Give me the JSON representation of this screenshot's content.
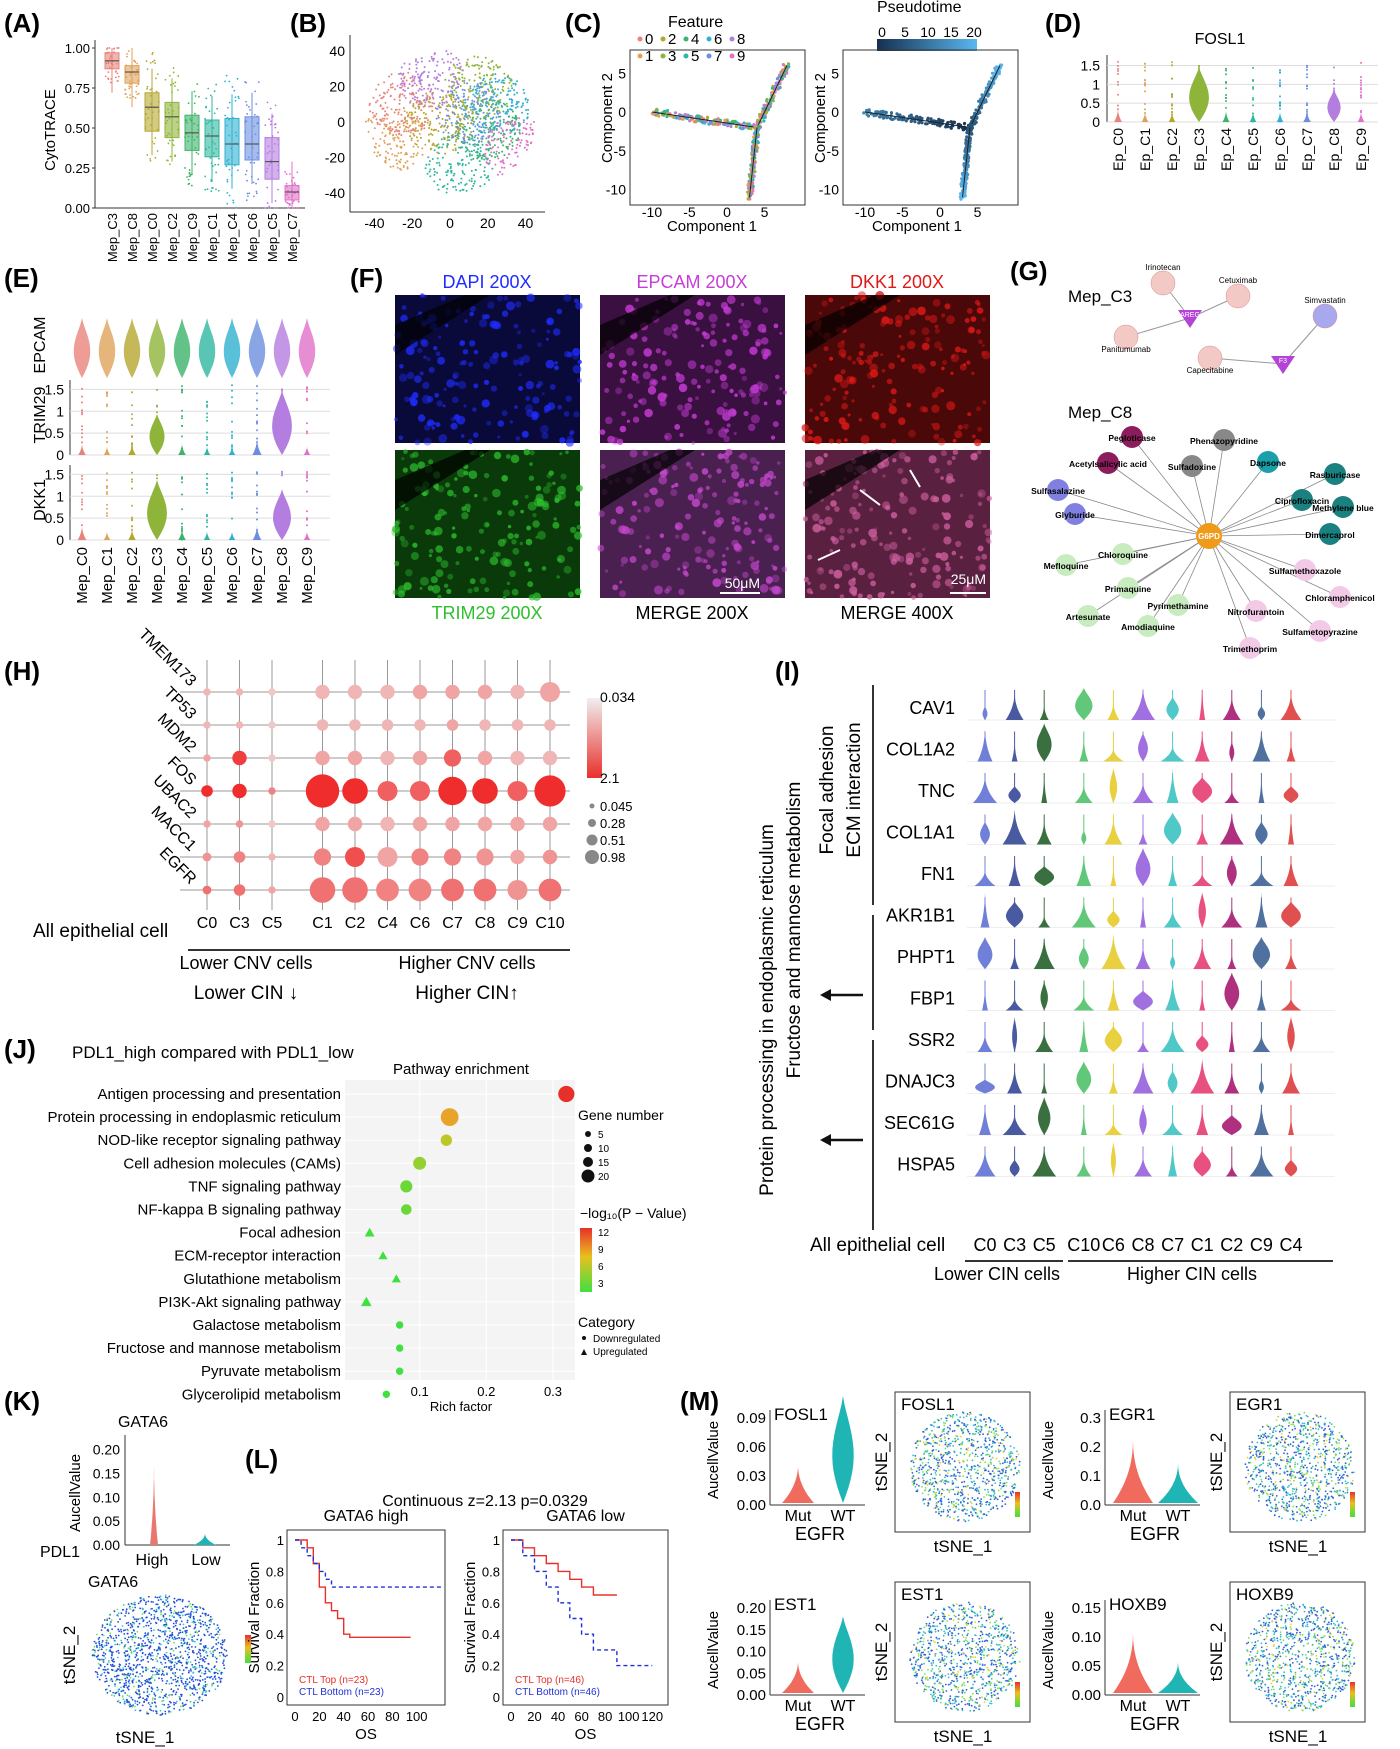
{
  "panel_letters": [
    "(A)",
    "(B)",
    "(C)",
    "(D)",
    "(E)",
    "(F)",
    "(G)",
    "(H)",
    "(I)",
    "(J)",
    "(K)",
    "(L)",
    "(M)"
  ],
  "colors": {
    "clusters": [
      "#e8837c",
      "#e0a25a",
      "#b5a630",
      "#8fb43a",
      "#3cb36a",
      "#2fb7a0",
      "#2fb0d0",
      "#6b8fe0",
      "#b47de0",
      "#e070c8"
    ],
    "red_accent": "#e8302a",
    "dapi": "#1f2cff",
    "epcam": "#c83cd8",
    "dkk1": "#e01818",
    "trim29": "#2ec02e",
    "violin_mut": "#f06a5e",
    "violin_wt": "#1fb5b5"
  },
  "chart_data": [
    {
      "panel": "A",
      "type": "box",
      "ylabel": "CytoTRACE",
      "ylim": [
        0,
        1.0
      ],
      "yticks": [
        "0.00",
        "0.25",
        "0.50",
        "0.75",
        "1.00"
      ],
      "categories": [
        "Mep_C3",
        "Mep_C8",
        "Mep_C0",
        "Mep_C2",
        "Mep_C9",
        "Mep_C1",
        "Mep_C4",
        "Mep_C6",
        "Mep_C5",
        "Mep_C7"
      ],
      "medians": [
        0.92,
        0.85,
        0.63,
        0.57,
        0.47,
        0.45,
        0.4,
        0.4,
        0.29,
        0.1
      ],
      "q1": [
        0.87,
        0.78,
        0.48,
        0.44,
        0.36,
        0.32,
        0.27,
        0.3,
        0.18,
        0.05
      ],
      "q3": [
        0.97,
        0.89,
        0.72,
        0.66,
        0.58,
        0.55,
        0.56,
        0.57,
        0.44,
        0.14
      ]
    },
    {
      "panel": "B",
      "type": "scatter",
      "xticks": [
        "-40",
        "-20",
        "0",
        "20",
        "40"
      ],
      "yticks": [
        "40",
        "20",
        "0",
        "-20",
        "-40"
      ]
    },
    {
      "panel": "C",
      "type": "scatter",
      "xlabel": "Component 1",
      "ylabel": "Component 2",
      "legend_title_left": "Feature",
      "legend_items": [
        "0",
        "2",
        "4",
        "6",
        "8",
        "1",
        "3",
        "5",
        "7",
        "9"
      ],
      "legend_title_right": "Pseudotime",
      "pseudotime_ticks": [
        "0",
        "5",
        "10",
        "15",
        "20"
      ],
      "xticks": [
        "-10",
        "-5",
        "0",
        "5"
      ],
      "yticks": [
        "5",
        "0",
        "-5",
        "-10"
      ]
    },
    {
      "panel": "D",
      "type": "violin",
      "title": "FOSL1",
      "yticks": [
        "0",
        "0.5",
        "1",
        "1.5"
      ],
      "categories": [
        "Ep_C0",
        "Ep_C1",
        "Ep_C2",
        "Ep_C3",
        "Ep_C4",
        "Ep_C5",
        "Ep_C6",
        "Ep_C7",
        "Ep_C8",
        "Ep_C9"
      ],
      "values": [
        0.05,
        0.02,
        0.02,
        0.5,
        0.03,
        0.02,
        0.02,
        0.04,
        0.25,
        0.02
      ]
    },
    {
      "panel": "E",
      "type": "violin",
      "genes": [
        "EPCAM",
        "TRIM29",
        "DKK1"
      ],
      "categories": [
        "Mep_C0",
        "Mep_C1",
        "Mep_C2",
        "Mep_C3",
        "Mep_C4",
        "Mep_C5",
        "Mep_C6",
        "Mep_C7",
        "Mep_C8",
        "Mep_C9"
      ],
      "yticks_trim29": [
        "0",
        "0.5",
        "1",
        "1.5"
      ],
      "yticks_dkk1": [
        "0",
        "0.5",
        "1",
        "1.5"
      ],
      "trim29": [
        0.05,
        0.02,
        0.05,
        0.35,
        0.05,
        0.02,
        0.02,
        0.1,
        0.6,
        0.02
      ],
      "dkk1": [
        0.08,
        0.02,
        0.05,
        0.55,
        0.05,
        0.02,
        0.02,
        0.08,
        0.45,
        0.02
      ]
    },
    {
      "panel": "H",
      "type": "dot",
      "genes": [
        "TMEM173",
        "TP53",
        "MDM2",
        "FOS",
        "UBAC2",
        "MACC1",
        "EGFR"
      ],
      "columns": [
        "C0",
        "C3",
        "C5",
        "C1",
        "C2",
        "C4",
        "C6",
        "C7",
        "C8",
        "C9",
        "C10"
      ],
      "row_label": "All epithelial cell",
      "color_legend": [
        "0.034",
        "2.1"
      ],
      "size_legend": [
        "0.045",
        "0.28",
        "0.51",
        "0.98"
      ],
      "group_left": "Lower CNV cells",
      "group_right": "Higher CNV cells",
      "cin_left": "Lower CIN ↓",
      "cin_right": "Higher CIN↑",
      "sizes": [
        [
          0.05,
          0.05,
          0.05,
          0.3,
          0.3,
          0.3,
          0.3,
          0.3,
          0.3,
          0.3,
          0.5
        ],
        [
          0.05,
          0.05,
          0.05,
          0.2,
          0.2,
          0.2,
          0.2,
          0.2,
          0.2,
          0.2,
          0.2
        ],
        [
          0.05,
          0.3,
          0.05,
          0.3,
          0.3,
          0.3,
          0.3,
          0.4,
          0.3,
          0.3,
          0.3
        ],
        [
          0.2,
          0.3,
          0.05,
          0.98,
          0.7,
          0.5,
          0.5,
          0.8,
          0.7,
          0.5,
          0.9
        ],
        [
          0.05,
          0.05,
          0.05,
          0.3,
          0.3,
          0.3,
          0.3,
          0.3,
          0.3,
          0.3,
          0.3
        ],
        [
          0.1,
          0.2,
          0.05,
          0.4,
          0.5,
          0.5,
          0.4,
          0.4,
          0.4,
          0.3,
          0.3
        ],
        [
          0.1,
          0.2,
          0.05,
          0.7,
          0.7,
          0.6,
          0.6,
          0.6,
          0.6,
          0.5,
          0.6
        ]
      ],
      "intensity": [
        [
          0.2,
          0.2,
          0.1,
          0.2,
          0.2,
          0.2,
          0.3,
          0.3,
          0.3,
          0.2,
          0.3
        ],
        [
          0.2,
          0.2,
          0.1,
          0.2,
          0.2,
          0.2,
          0.2,
          0.3,
          0.2,
          0.2,
          0.2
        ],
        [
          0.3,
          0.9,
          0.1,
          0.3,
          0.3,
          0.2,
          0.3,
          0.7,
          0.3,
          0.2,
          0.2
        ],
        [
          1.0,
          1.0,
          0.5,
          1.0,
          1.0,
          0.7,
          0.7,
          1.0,
          1.0,
          0.7,
          1.0
        ],
        [
          0.3,
          0.4,
          0.1,
          0.3,
          0.3,
          0.2,
          0.3,
          0.3,
          0.3,
          0.3,
          0.3
        ],
        [
          0.4,
          0.5,
          0.2,
          0.5,
          0.8,
          0.3,
          0.5,
          0.5,
          0.4,
          0.3,
          0.4
        ],
        [
          0.6,
          0.6,
          0.3,
          0.6,
          0.6,
          0.5,
          0.5,
          0.6,
          0.6,
          0.4,
          0.6
        ]
      ]
    },
    {
      "panel": "I",
      "type": "violin",
      "genes": [
        "CAV1",
        "COL1A2",
        "TNC",
        "COL1A1",
        "FN1",
        "AKR1B1",
        "PHPT1",
        "FBP1",
        "SSR2",
        "DNAJC3",
        "SEC61G",
        "HSPA5"
      ],
      "columns": [
        "C0",
        "C3",
        "C5",
        "C10",
        "C6",
        "C8",
        "C7",
        "C1",
        "C2",
        "C9",
        "C4"
      ],
      "row_label": "All epithelial cell",
      "group_left": "Lower CIN cells",
      "group_right": "Higher CIN cells",
      "side_labels": [
        "Focal adhesion",
        "ECM interaction",
        "Protein processing in endoplasmic reticulum",
        "Fructose and mannose metabolism"
      ]
    },
    {
      "panel": "J",
      "type": "scatter",
      "heading": "PDL1_high compared with PDL1_low",
      "title": "Pathway enrichment",
      "xlabel": "Rich factor",
      "xticks": [
        "0.1",
        "0.2",
        "0.3"
      ],
      "pathways": [
        "Antigen processing and presentation",
        "Protein processing in endoplasmic reticulum",
        "NOD-like receptor signaling pathway",
        "Cell adhesion molecules (CAMs)",
        "TNF signaling pathway",
        "NF-kappa B signaling pathway",
        "Focal adhesion",
        "ECM-receptor interaction",
        "Glutathione metabolism",
        "PI3K-Akt signaling pathway",
        "Galactose metabolism",
        "Fructose and mannose metabolism",
        "Pyruvate metabolism",
        "Glycerolipid metabolism"
      ],
      "rich_factor": [
        0.32,
        0.145,
        0.14,
        0.1,
        0.08,
        0.08,
        0.025,
        0.045,
        0.065,
        0.02,
        0.07,
        0.07,
        0.07,
        0.05
      ],
      "logp": [
        12,
        8,
        6,
        5,
        4,
        4,
        3,
        3,
        3,
        3,
        3,
        3,
        3,
        3
      ],
      "gene_number": [
        14,
        16,
        8,
        10,
        9,
        7,
        6,
        5,
        5,
        7,
        3,
        3,
        3,
        3
      ],
      "category": [
        "down",
        "down",
        "down",
        "down",
        "down",
        "down",
        "up",
        "up",
        "up",
        "up",
        "down",
        "down",
        "down",
        "down"
      ],
      "legend_gene_title": "Gene number",
      "legend_gene_values": [
        "5",
        "10",
        "15",
        "20"
      ],
      "legend_color_title": "−log₁₀(P − Value)",
      "legend_color_ticks": [
        "12",
        "9",
        "6",
        "3"
      ],
      "legend_cat_title": "Category",
      "legend_cat_items": [
        "Downregulated",
        "Upregulated"
      ]
    },
    {
      "panel": "K",
      "type": "violin",
      "title": "GATA6",
      "ylabel": "AucellValue",
      "yticks": [
        "0.00",
        "0.05",
        "0.10",
        "0.15",
        "0.20"
      ],
      "categories": [
        "High",
        "Low"
      ],
      "group_label": "PDL1",
      "tsne_title": "GATA6",
      "tsne_x": "tSNE_1",
      "tsne_y": "tSNE_2"
    },
    {
      "panel": "L",
      "type": "line",
      "suptitle": "Continuous z=2.13  p=0.0329",
      "ylabel": "Survival Fraction",
      "xlabel": "OS",
      "plots": [
        {
          "title": "GATA6 high",
          "xticks": [
            "0",
            "20",
            "40",
            "60",
            "80",
            "100"
          ],
          "xmax": 120,
          "legend": [
            "CTL Top (n=23)",
            "CTL Bottom (n=23)"
          ],
          "top_x": [
            0,
            10,
            15,
            20,
            25,
            30,
            35,
            40,
            45,
            55,
            70,
            95
          ],
          "top_y": [
            1.0,
            0.95,
            0.85,
            0.7,
            0.6,
            0.55,
            0.5,
            0.4,
            0.38,
            0.38,
            0.38,
            0.38
          ],
          "bottom_x": [
            0,
            5,
            10,
            15,
            20,
            25,
            30,
            60,
            120
          ],
          "bottom_y": [
            1.0,
            0.95,
            0.9,
            0.85,
            0.8,
            0.75,
            0.7,
            0.7,
            0.7
          ]
        },
        {
          "title": "GATA6 low",
          "xticks": [
            "0",
            "20",
            "40",
            "60",
            "80",
            "100",
            "120"
          ],
          "xmax": 130,
          "legend": [
            "CTL Top (n=46)",
            "CTL Bottom (n=46)"
          ],
          "top_x": [
            0,
            10,
            20,
            30,
            40,
            50,
            60,
            70,
            80,
            90
          ],
          "top_y": [
            1.0,
            0.95,
            0.9,
            0.85,
            0.8,
            0.75,
            0.7,
            0.65,
            0.65,
            0.65
          ],
          "bottom_x": [
            0,
            10,
            20,
            30,
            40,
            50,
            60,
            70,
            90,
            120
          ],
          "bottom_y": [
            1.0,
            0.9,
            0.8,
            0.7,
            0.6,
            0.5,
            0.4,
            0.3,
            0.2,
            0.2
          ]
        }
      ]
    },
    {
      "panel": "M",
      "type": "violin",
      "ylabel": "AucellValue",
      "categories": [
        "Mut",
        "WT"
      ],
      "xlabel": "EGFR",
      "tsne_x": "tSNE_1",
      "tsne_y": "tSNE_2",
      "plots": [
        {
          "gene": "FOSL1",
          "yticks": [
            "0.00",
            "0.03",
            "0.06",
            "0.09"
          ],
          "mut": 0.02,
          "wt": 0.09
        },
        {
          "gene": "EGR1",
          "yticks": [
            "0.0",
            "0.1",
            "0.2",
            "0.3"
          ],
          "mut": 0.15,
          "wt": 0.07
        },
        {
          "gene": "EST1",
          "yticks": [
            "0.00",
            "0.05",
            "0.10",
            "0.15",
            "0.20"
          ],
          "mut": 0.03,
          "wt": 0.13
        },
        {
          "gene": "HOXB9",
          "yticks": [
            "0.00",
            "0.05",
            "0.10",
            "0.15"
          ],
          "mut": 0.07,
          "wt": 0.02
        }
      ]
    }
  ],
  "panel_F": {
    "tiles": [
      "DAPI  200X",
      "EPCAM 200X",
      "DKK1 200X",
      "TRIM29 200X",
      "MERGE 200X",
      "MERGE 400X"
    ],
    "scalebars": [
      "50μM",
      "25μM"
    ]
  },
  "panel_G": {
    "groups": [
      "Mep_C3",
      "Mep_C8"
    ],
    "c3_targets": [
      "AREG",
      "F3"
    ],
    "c3_drugs": [
      "Irinotecan",
      "Cetuximab",
      "Simvastatin",
      "Panitumumab",
      "Capecitabine"
    ],
    "c8_target": "G6PD",
    "c8_drugs": [
      "Pegloticase",
      "Phenazopyridine",
      "Acetylsalicylic acid",
      "Sulfadoxine",
      "Dapsone",
      "Rasburicase",
      "Sulfasalazine",
      "Ciprofloxacin",
      "Methylene blue",
      "Glyburide",
      "Dimercaprol",
      "Chloroquine",
      "Mefloquine",
      "Sulfamethoxazole",
      "Primaquine",
      "Chloramphenicol",
      "Pyrimethamine",
      "Artesunate",
      "Amodiaquine",
      "Nitrofurantoin",
      "Sulfametopyrazine",
      "Trimethoprim"
    ]
  }
}
